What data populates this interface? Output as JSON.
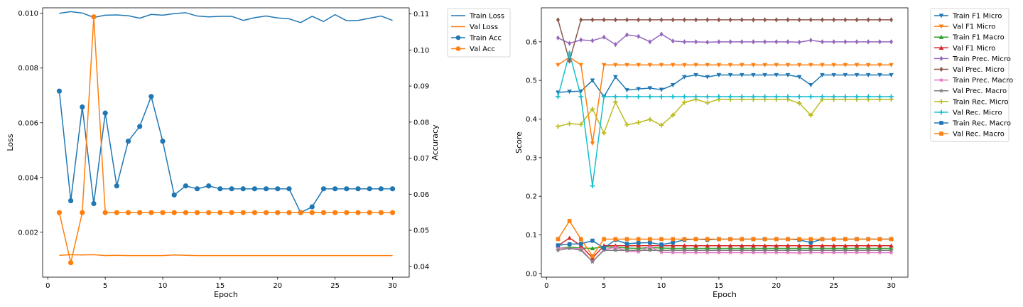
{
  "chart_data": [
    {
      "type": "line",
      "xlabel": "Epoch",
      "ylabel": "Loss",
      "ylabel_right": "Accuracy",
      "xlim": [
        -0.45,
        31.45
      ],
      "xticks": [
        0,
        5,
        10,
        15,
        20,
        25,
        30
      ],
      "ylim": [
        0.00036,
        0.0102
      ],
      "yticks": [
        0.002,
        0.004,
        0.006,
        0.008,
        0.01
      ],
      "ytick_labels": [
        "0.002",
        "0.004",
        "0.006",
        "0.008",
        "0.010"
      ],
      "ylim_right": [
        0.037,
        0.1117
      ],
      "yticks_right": [
        0.04,
        0.05,
        0.06,
        0.07,
        0.08,
        0.09,
        0.1,
        0.11
      ],
      "ytick_labels_right": [
        "0.04",
        "0.05",
        "0.06",
        "0.07",
        "0.08",
        "0.09",
        "0.10",
        "0.11"
      ],
      "legend_position": "upper right, outside",
      "x": [
        1,
        2,
        3,
        4,
        5,
        6,
        7,
        8,
        9,
        10,
        11,
        12,
        13,
        14,
        15,
        16,
        17,
        18,
        19,
        20,
        21,
        22,
        23,
        24,
        25,
        26,
        27,
        28,
        29,
        30
      ],
      "series": [
        {
          "name": "Train Loss",
          "axis": "left",
          "color": "#1f77b4",
          "marker": "none",
          "values": [
            0.01,
            0.01006,
            0.01001,
            0.00985,
            0.00993,
            0.00994,
            0.00991,
            0.00982,
            0.00996,
            0.00993,
            0.00999,
            0.01002,
            0.0099,
            0.00987,
            0.00989,
            0.00989,
            0.00974,
            0.00984,
            0.0099,
            0.00983,
            0.0098,
            0.00966,
            0.00989,
            0.0097,
            0.00995,
            0.00973,
            0.00974,
            0.00982,
            0.0099,
            0.00974
          ]
        },
        {
          "name": "Val Loss",
          "axis": "left",
          "color": "#ff7f0e",
          "marker": "none",
          "values": [
            0.00116,
            0.00118,
            0.00117,
            0.00118,
            0.00115,
            0.00116,
            0.00115,
            0.00115,
            0.00115,
            0.00115,
            0.00117,
            0.00116,
            0.00115,
            0.00115,
            0.00115,
            0.00115,
            0.00115,
            0.00115,
            0.00115,
            0.00115,
            0.00115,
            0.00115,
            0.00115,
            0.00115,
            0.00115,
            0.00115,
            0.00115,
            0.00115,
            0.00115,
            0.00115
          ]
        },
        {
          "name": "Train Acc",
          "axis": "right",
          "color": "#1f77b4",
          "marker": "circle",
          "values": [
            0.0886,
            0.0582,
            0.0842,
            0.0574,
            0.0825,
            0.0623,
            0.0747,
            0.0788,
            0.0871,
            0.0747,
            0.0598,
            0.0623,
            0.0615,
            0.0623,
            0.0615,
            0.0615,
            0.0615,
            0.0615,
            0.0615,
            0.0615,
            0.0615,
            0.0549,
            0.0565,
            0.0615,
            0.0615,
            0.0615,
            0.0615,
            0.0615,
            0.0615,
            0.0615
          ]
        },
        {
          "name": "Val Acc",
          "axis": "right",
          "color": "#ff7f0e",
          "marker": "circle",
          "values": [
            0.0549,
            0.041,
            0.0549,
            0.1092,
            0.0549,
            0.0549,
            0.0549,
            0.0549,
            0.0549,
            0.0549,
            0.0549,
            0.0549,
            0.0549,
            0.0549,
            0.0549,
            0.0549,
            0.0549,
            0.0549,
            0.0549,
            0.0549,
            0.0549,
            0.0549,
            0.0549,
            0.0549,
            0.0549,
            0.0549,
            0.0549,
            0.0549,
            0.0549,
            0.0549
          ]
        }
      ]
    },
    {
      "type": "line",
      "xlabel": "Epoch",
      "ylabel": "Score",
      "xlim": [
        -0.45,
        31.45
      ],
      "xticks": [
        0,
        5,
        10,
        15,
        20,
        25,
        30
      ],
      "ylim": [
        -0.0095,
        0.688
      ],
      "yticks": [
        0.0,
        0.1,
        0.2,
        0.3,
        0.4,
        0.5,
        0.6
      ],
      "ytick_labels": [
        "0.0",
        "0.1",
        "0.2",
        "0.3",
        "0.4",
        "0.5",
        "0.6"
      ],
      "legend_position": "upper right, outside",
      "x": [
        1,
        2,
        3,
        4,
        5,
        6,
        7,
        8,
        9,
        10,
        11,
        12,
        13,
        14,
        15,
        16,
        17,
        18,
        19,
        20,
        21,
        22,
        23,
        24,
        25,
        26,
        27,
        28,
        29,
        30
      ],
      "series": [
        {
          "name": "Train F1 Micro",
          "color": "#1f77b4",
          "marker": "triangle_down",
          "values": [
            0.469,
            0.471,
            0.472,
            0.5,
            0.458,
            0.509,
            0.475,
            0.478,
            0.48,
            0.476,
            0.488,
            0.509,
            0.514,
            0.509,
            0.514,
            0.514,
            0.514,
            0.514,
            0.514,
            0.514,
            0.514,
            0.509,
            0.488,
            0.514,
            0.514,
            0.514,
            0.514,
            0.514,
            0.514,
            0.514
          ]
        },
        {
          "name": "Val F1 Micro",
          "color": "#ff7f0e",
          "marker": "triangle_down",
          "values": [
            0.54,
            0.56,
            0.54,
            0.337,
            0.54,
            0.54,
            0.54,
            0.54,
            0.54,
            0.54,
            0.54,
            0.54,
            0.54,
            0.54,
            0.54,
            0.54,
            0.54,
            0.54,
            0.54,
            0.54,
            0.54,
            0.54,
            0.54,
            0.54,
            0.54,
            0.54,
            0.54,
            0.54,
            0.54,
            0.54
          ]
        },
        {
          "name": "Train F1 Macro",
          "color": "#2ca02c",
          "marker": "triangle_up",
          "values": [
            0.065,
            0.068,
            0.066,
            0.065,
            0.069,
            0.068,
            0.066,
            0.065,
            0.067,
            0.066,
            0.065,
            0.065,
            0.065,
            0.065,
            0.065,
            0.065,
            0.065,
            0.065,
            0.065,
            0.065,
            0.065,
            0.065,
            0.065,
            0.065,
            0.065,
            0.065,
            0.065,
            0.065,
            0.065,
            0.065
          ]
        },
        {
          "name": "Val F1 Micro",
          "color": "#d62728",
          "marker": "triangle_up",
          "values": [
            0.072,
            0.092,
            0.072,
            0.04,
            0.072,
            0.072,
            0.072,
            0.072,
            0.072,
            0.072,
            0.072,
            0.072,
            0.072,
            0.072,
            0.072,
            0.072,
            0.072,
            0.072,
            0.072,
            0.072,
            0.072,
            0.072,
            0.072,
            0.072,
            0.072,
            0.072,
            0.072,
            0.072,
            0.072,
            0.072
          ]
        },
        {
          "name": "Train Prec. Micro",
          "color": "#9467bd",
          "marker": "diamond",
          "values": [
            0.61,
            0.596,
            0.605,
            0.603,
            0.612,
            0.593,
            0.618,
            0.614,
            0.6,
            0.62,
            0.602,
            0.6,
            0.6,
            0.599,
            0.6,
            0.6,
            0.6,
            0.6,
            0.6,
            0.6,
            0.6,
            0.599,
            0.604,
            0.6,
            0.6,
            0.6,
            0.6,
            0.6,
            0.6,
            0.6
          ]
        },
        {
          "name": "Val Prec. Micro",
          "color": "#8c564b",
          "marker": "diamond",
          "values": [
            0.657,
            0.55,
            0.657,
            0.657,
            0.657,
            0.657,
            0.657,
            0.657,
            0.657,
            0.657,
            0.657,
            0.657,
            0.657,
            0.657,
            0.657,
            0.657,
            0.657,
            0.657,
            0.657,
            0.657,
            0.657,
            0.657,
            0.657,
            0.657,
            0.657,
            0.657,
            0.657,
            0.657,
            0.657,
            0.657
          ]
        },
        {
          "name": "Train Prec. Macro",
          "color": "#e377c2",
          "marker": "star",
          "values": [
            0.066,
            0.065,
            0.064,
            0.03,
            0.062,
            0.068,
            0.058,
            0.056,
            0.069,
            0.055,
            0.054,
            0.054,
            0.054,
            0.054,
            0.054,
            0.054,
            0.054,
            0.054,
            0.054,
            0.054,
            0.054,
            0.053,
            0.054,
            0.054,
            0.054,
            0.054,
            0.054,
            0.054,
            0.054,
            0.054
          ]
        },
        {
          "name": "Val Prec. Macro",
          "color": "#7f7f7f",
          "marker": "star",
          "values": [
            0.06,
            0.065,
            0.06,
            0.031,
            0.06,
            0.06,
            0.06,
            0.06,
            0.06,
            0.06,
            0.06,
            0.06,
            0.06,
            0.06,
            0.06,
            0.06,
            0.06,
            0.06,
            0.06,
            0.06,
            0.06,
            0.06,
            0.06,
            0.06,
            0.06,
            0.06,
            0.06,
            0.06,
            0.06,
            0.06
          ]
        },
        {
          "name": "Train Rec. Micro",
          "color": "#bcbd22",
          "marker": "plus",
          "values": [
            0.381,
            0.388,
            0.386,
            0.426,
            0.364,
            0.444,
            0.385,
            0.391,
            0.399,
            0.384,
            0.41,
            0.443,
            0.451,
            0.442,
            0.451,
            0.451,
            0.451,
            0.451,
            0.451,
            0.451,
            0.451,
            0.441,
            0.41,
            0.451,
            0.451,
            0.451,
            0.451,
            0.451,
            0.451,
            0.451
          ]
        },
        {
          "name": "Val Rec. Micro",
          "color": "#17becf",
          "marker": "plus",
          "values": [
            0.458,
            0.571,
            0.458,
            0.227,
            0.458,
            0.458,
            0.458,
            0.458,
            0.458,
            0.458,
            0.458,
            0.458,
            0.458,
            0.458,
            0.458,
            0.458,
            0.458,
            0.458,
            0.458,
            0.458,
            0.458,
            0.458,
            0.458,
            0.458,
            0.458,
            0.458,
            0.458,
            0.458,
            0.458,
            0.458
          ]
        },
        {
          "name": "Train Rec. Macro",
          "color": "#1f77b4",
          "marker": "square",
          "values": [
            0.073,
            0.076,
            0.077,
            0.085,
            0.066,
            0.087,
            0.077,
            0.079,
            0.08,
            0.075,
            0.08,
            0.087,
            0.089,
            0.087,
            0.089,
            0.089,
            0.089,
            0.089,
            0.089,
            0.089,
            0.089,
            0.087,
            0.08,
            0.089,
            0.089,
            0.089,
            0.089,
            0.089,
            0.089,
            0.089
          ]
        },
        {
          "name": "Val Rec. Macro",
          "color": "#ff7f0e",
          "marker": "square",
          "values": [
            0.089,
            0.136,
            0.089,
            0.045,
            0.089,
            0.089,
            0.089,
            0.089,
            0.089,
            0.089,
            0.089,
            0.089,
            0.089,
            0.089,
            0.089,
            0.089,
            0.089,
            0.089,
            0.089,
            0.089,
            0.089,
            0.089,
            0.089,
            0.089,
            0.089,
            0.089,
            0.089,
            0.089,
            0.089,
            0.089
          ]
        }
      ]
    }
  ]
}
